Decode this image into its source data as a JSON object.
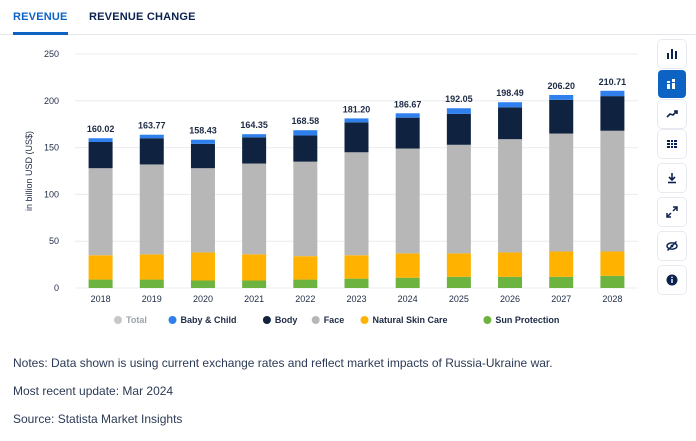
{
  "tabs": [
    {
      "label": "REVENUE",
      "active": true
    },
    {
      "label": "REVENUE CHANGE",
      "active": false
    }
  ],
  "sidebar": {
    "buttons": [
      {
        "name": "bar-chart-icon",
        "active": false
      },
      {
        "name": "stacked-bar-icon",
        "active": true
      },
      {
        "name": "trend-line-icon",
        "active": false
      },
      {
        "name": "table-icon",
        "active": false
      },
      {
        "name": "download-icon",
        "active": false
      },
      {
        "name": "expand-icon",
        "active": false
      },
      {
        "name": "hide-icon",
        "active": false
      },
      {
        "name": "info-icon",
        "active": false
      }
    ]
  },
  "notes": {
    "note": "Notes: Data shown is using current exchange rates and reflect market impacts of Russia-Ukraine war.",
    "update": "Most recent update: Mar 2024",
    "source": "Source: Statista Market Insights"
  },
  "colors": {
    "baby": "#2f80ed",
    "body": "#0f2340",
    "face": "#b7b7b7",
    "natural": "#ffb300",
    "sun": "#6cb33f",
    "total": "#c8c8c8"
  },
  "chart_data": {
    "type": "bar",
    "stacked": true,
    "title": "",
    "xlabel": "",
    "ylabel": "in billion USD (US$)",
    "ylim": [
      0,
      250
    ],
    "yticks": [
      0,
      50,
      100,
      150,
      200,
      250
    ],
    "categories": [
      "2018",
      "2019",
      "2020",
      "2021",
      "2022",
      "2023",
      "2024",
      "2025",
      "2026",
      "2027",
      "2028"
    ],
    "totals": [
      "160.02",
      "163.77",
      "158.43",
      "164.35",
      "168.58",
      "181.20",
      "186.67",
      "192.05",
      "198.49",
      "206.20",
      "210.71"
    ],
    "series": [
      {
        "name": "Sun Protection",
        "key": "sun",
        "values": [
          9,
          9,
          8,
          8,
          9,
          10,
          11,
          12,
          12,
          12,
          13
        ]
      },
      {
        "name": "Natural Skin Care",
        "key": "natural",
        "values": [
          26,
          27,
          30,
          28,
          25,
          25,
          26,
          25,
          26,
          27,
          26
        ]
      },
      {
        "name": "Face",
        "key": "face",
        "values": [
          93,
          96,
          90,
          97,
          101,
          110,
          112,
          116,
          121,
          126,
          129
        ]
      },
      {
        "name": "Body",
        "key": "body",
        "values": [
          28,
          28,
          26,
          28,
          28,
          32,
          33,
          33,
          34,
          36,
          37
        ]
      },
      {
        "name": "Baby & Child",
        "key": "baby",
        "values": [
          4.02,
          3.77,
          4.43,
          3.35,
          5.58,
          4.2,
          4.67,
          6.05,
          5.49,
          5.2,
          5.71
        ]
      }
    ],
    "legend": [
      {
        "name": "Total",
        "key": "total"
      },
      {
        "name": "Baby & Child",
        "key": "baby"
      },
      {
        "name": "Body",
        "key": "body"
      },
      {
        "name": "Face",
        "key": "face"
      },
      {
        "name": "Natural Skin Care",
        "key": "natural"
      },
      {
        "name": "Sun Protection",
        "key": "sun"
      }
    ],
    "legend_position": "bottom"
  }
}
